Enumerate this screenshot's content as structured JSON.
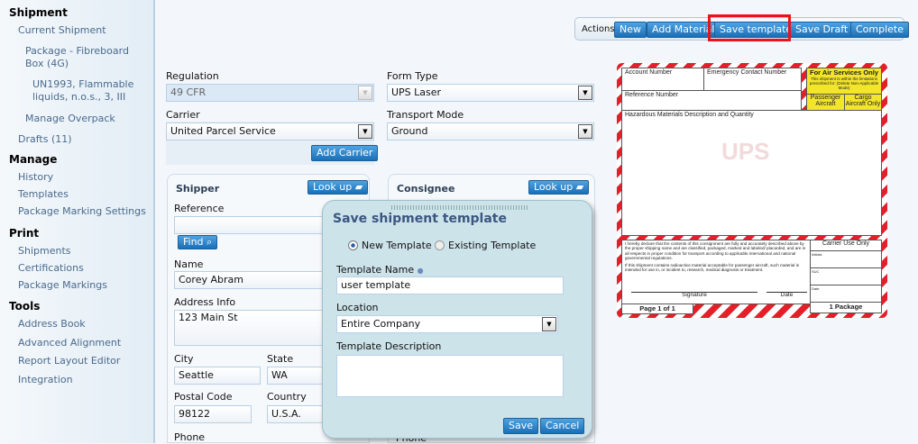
{
  "sidebar": {
    "shipment": "Shipment",
    "current_shipment": "Current Shipment",
    "package": "Package - Fibreboard Box (4G)",
    "un_item": "UN1993, Flammable liquids, n.o.s., 3, III",
    "manage_overpack": "Manage Overpack",
    "drafts": "Drafts (11)",
    "manage": "Manage",
    "history": "History",
    "templates": "Templates",
    "package_marking_settings": "Package Marking Settings",
    "print": "Print",
    "shipments": "Shipments",
    "certifications": "Certifications",
    "package_markings": "Package Markings",
    "tools": "Tools",
    "address_book": "Address Book",
    "advanced_alignment": "Advanced Alignment",
    "report_layout_editor": "Report Layout Editor",
    "integration": "Integration"
  },
  "actions": {
    "label": "Actions",
    "new": "New",
    "add_material": "Add Material",
    "save_template": "Save template",
    "save_draft": "Save Draft",
    "complete": "Complete",
    "highlight_color": "#e8141c"
  },
  "form": {
    "regulation_label": "Regulation",
    "regulation": "49 CFR",
    "form_type_label": "Form Type",
    "form_type": "UPS Laser",
    "carrier_label": "Carrier",
    "carrier": "United Parcel Service",
    "transport_label": "Transport Mode",
    "transport": "Ground",
    "add_carrier": "Add Carrier"
  },
  "shipper": {
    "title": "Shipper",
    "lookup": "Look up",
    "reference_label": "Reference",
    "reference": "",
    "find": "Find",
    "name_label": "Name",
    "name": "Corey Abram",
    "address_label": "Address Info",
    "address": "123 Main St",
    "city_label": "City",
    "city": "Seattle",
    "state_label": "State",
    "state": "WA",
    "postal_label": "Postal Code",
    "postal": "98122",
    "country_label": "Country",
    "country": "U.S.A.",
    "phone_label": "Phone"
  },
  "consignee": {
    "title": "Consignee",
    "lookup": "Look up",
    "phone_label": "Phone"
  },
  "dialog": {
    "title": "Save shipment template",
    "new_template": "New Template",
    "existing_template": "Existing Template",
    "selected": "new",
    "name_label": "Template Name",
    "name": "user template",
    "location_label": "Location",
    "location": "Entire Company",
    "description_label": "Template Description",
    "description": "",
    "save": "Save",
    "cancel": "Cancel"
  },
  "hazmat_label": {
    "account_number": "Account Number",
    "emergency_contact": "Emergency Contact Number",
    "air_only": "For Air Services Only",
    "air_note": "This shipment is within the limitations prescribed for: (Delete Non-Applicable Mode)",
    "passenger": "Passenger Aircraft",
    "cargo": "Cargo Aircraft Only",
    "reference_number": "Reference Number",
    "hazmat_desc": "Hazardous Materials Description and Quantity",
    "logo": "UPS",
    "declaration": "I hereby declare that the contents of this consignment are fully and accurately described above by the proper shipping name and are classified, packaged, marked and labeled/ placarded, and are in all respects in proper condition for transport according to applicable international and national governmental regulations.",
    "radioactive_note": "If this shipment contains radioactive material acceptable for passenger aircraft, such material is intended for use in, or incident to, research, medical diagnosis or treatment.",
    "signature": "Signature",
    "date": "Date",
    "carrier_use": "Carrier Use Only",
    "initials": "Initials",
    "suc": "SUC",
    "date2": "Date",
    "page": "Page 1 of 1",
    "packages": "1 Package"
  }
}
